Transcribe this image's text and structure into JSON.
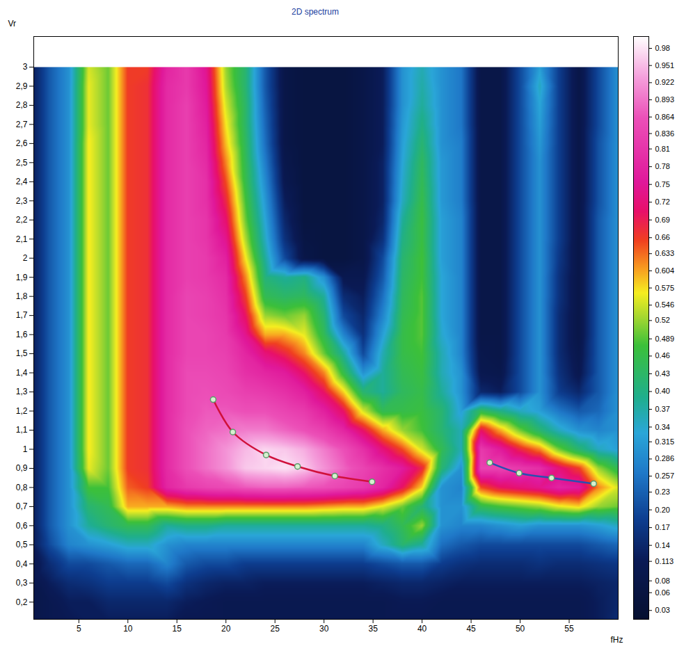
{
  "chart_data": {
    "type": "heatmap",
    "title": "2D spectrum",
    "x_label": "fHz",
    "y_label": "Vr",
    "xlim": [
      0.4,
      60
    ],
    "ylim": [
      0.11,
      3.16
    ],
    "xticks": [
      5,
      10,
      15,
      20,
      25,
      30,
      35,
      40,
      45,
      50,
      55
    ],
    "yticks": [
      {
        "value": 0.2,
        "label": "0,2"
      },
      {
        "value": 0.3,
        "label": "0,3"
      },
      {
        "value": 0.4,
        "label": "0,4"
      },
      {
        "value": 0.5,
        "label": "0,5"
      },
      {
        "value": 0.6,
        "label": "0,6"
      },
      {
        "value": 0.7,
        "label": "0,7"
      },
      {
        "value": 0.8,
        "label": "0,8"
      },
      {
        "value": 0.9,
        "label": "0,9"
      },
      1,
      {
        "value": 1.1,
        "label": "1,1"
      },
      {
        "value": 1.2,
        "label": "1,2"
      },
      {
        "value": 1.3,
        "label": "1,3"
      },
      {
        "value": 1.4,
        "label": "1,4"
      },
      {
        "value": 1.5,
        "label": "1,5"
      },
      {
        "value": 1.6,
        "label": "1,6"
      },
      {
        "value": 1.7,
        "label": "1,7"
      },
      {
        "value": 1.8,
        "label": "1,8"
      },
      {
        "value": 1.9,
        "label": "1,9"
      },
      2,
      {
        "value": 2.1,
        "label": "2,1"
      },
      {
        "value": 2.2,
        "label": "2,2"
      },
      {
        "value": 2.3,
        "label": "2,3"
      },
      {
        "value": 2.4,
        "label": "2,4"
      },
      {
        "value": 2.5,
        "label": "2,5"
      },
      {
        "value": 2.6,
        "label": "2,6"
      },
      {
        "value": 2.7,
        "label": "2,7"
      },
      {
        "value": 2.8,
        "label": "2,8"
      },
      {
        "value": 2.9,
        "label": "2,9"
      },
      3
    ],
    "cells": {
      "x": [
        0,
        2,
        4,
        6,
        8,
        10,
        12,
        14,
        16,
        18,
        20,
        22,
        24,
        26,
        28,
        30,
        32,
        34,
        36,
        38,
        40,
        42,
        44,
        46,
        48,
        50,
        52,
        54,
        56,
        58,
        60
      ],
      "y": [
        3.0,
        2.9,
        2.8,
        2.7,
        2.6,
        2.5,
        2.4,
        2.3,
        2.2,
        2.1,
        2.0,
        1.9,
        1.8,
        1.7,
        1.6,
        1.5,
        1.4,
        1.3,
        1.2,
        1.1,
        1.0,
        0.9,
        0.8,
        0.7,
        0.6,
        0.5,
        0.4,
        0.3,
        0.2,
        0.1
      ],
      "values": [
        [
          0.1,
          0.22,
          0.3,
          0.55,
          0.5,
          0.66,
          0.66,
          0.78,
          0.82,
          0.74,
          0.52,
          0.42,
          0.22,
          0.08,
          0.06,
          0.06,
          0.06,
          0.08,
          0.12,
          0.3,
          0.36,
          0.3,
          0.26,
          0.08,
          0.08,
          0.2,
          0.32,
          0.18,
          0.08,
          0.2,
          0.3
        ],
        [
          0.1,
          0.22,
          0.3,
          0.56,
          0.5,
          0.66,
          0.67,
          0.79,
          0.82,
          0.75,
          0.53,
          0.42,
          0.22,
          0.08,
          0.06,
          0.06,
          0.06,
          0.08,
          0.12,
          0.3,
          0.37,
          0.3,
          0.26,
          0.08,
          0.08,
          0.2,
          0.35,
          0.18,
          0.08,
          0.2,
          0.3
        ],
        [
          0.1,
          0.22,
          0.3,
          0.56,
          0.5,
          0.66,
          0.67,
          0.79,
          0.83,
          0.76,
          0.55,
          0.43,
          0.23,
          0.08,
          0.06,
          0.06,
          0.06,
          0.08,
          0.12,
          0.3,
          0.38,
          0.3,
          0.26,
          0.08,
          0.08,
          0.2,
          0.33,
          0.18,
          0.08,
          0.2,
          0.3
        ],
        [
          0.1,
          0.22,
          0.3,
          0.56,
          0.5,
          0.66,
          0.67,
          0.79,
          0.83,
          0.77,
          0.57,
          0.43,
          0.24,
          0.08,
          0.06,
          0.06,
          0.06,
          0.08,
          0.12,
          0.31,
          0.4,
          0.3,
          0.26,
          0.08,
          0.08,
          0.2,
          0.32,
          0.18,
          0.08,
          0.2,
          0.3
        ],
        [
          0.1,
          0.22,
          0.3,
          0.57,
          0.5,
          0.66,
          0.67,
          0.79,
          0.83,
          0.78,
          0.59,
          0.44,
          0.25,
          0.08,
          0.06,
          0.06,
          0.06,
          0.08,
          0.12,
          0.32,
          0.42,
          0.3,
          0.27,
          0.08,
          0.08,
          0.2,
          0.31,
          0.18,
          0.08,
          0.21,
          0.3
        ],
        [
          0.1,
          0.22,
          0.3,
          0.57,
          0.5,
          0.66,
          0.67,
          0.79,
          0.83,
          0.79,
          0.62,
          0.45,
          0.27,
          0.09,
          0.06,
          0.06,
          0.06,
          0.08,
          0.13,
          0.33,
          0.44,
          0.31,
          0.27,
          0.08,
          0.08,
          0.2,
          0.3,
          0.18,
          0.08,
          0.21,
          0.3
        ],
        [
          0.1,
          0.22,
          0.3,
          0.57,
          0.5,
          0.66,
          0.67,
          0.79,
          0.83,
          0.8,
          0.65,
          0.46,
          0.29,
          0.1,
          0.06,
          0.06,
          0.06,
          0.08,
          0.13,
          0.34,
          0.45,
          0.31,
          0.27,
          0.08,
          0.08,
          0.2,
          0.3,
          0.18,
          0.08,
          0.21,
          0.3
        ],
        [
          0.1,
          0.22,
          0.3,
          0.57,
          0.5,
          0.66,
          0.67,
          0.79,
          0.83,
          0.8,
          0.68,
          0.48,
          0.31,
          0.12,
          0.06,
          0.06,
          0.06,
          0.08,
          0.13,
          0.35,
          0.46,
          0.31,
          0.27,
          0.08,
          0.08,
          0.2,
          0.3,
          0.18,
          0.08,
          0.21,
          0.3
        ],
        [
          0.1,
          0.22,
          0.3,
          0.57,
          0.5,
          0.66,
          0.67,
          0.79,
          0.83,
          0.81,
          0.71,
          0.5,
          0.33,
          0.14,
          0.06,
          0.06,
          0.06,
          0.08,
          0.14,
          0.38,
          0.47,
          0.32,
          0.28,
          0.08,
          0.08,
          0.2,
          0.3,
          0.18,
          0.08,
          0.22,
          0.3
        ],
        [
          0.1,
          0.22,
          0.3,
          0.57,
          0.5,
          0.66,
          0.67,
          0.79,
          0.83,
          0.81,
          0.74,
          0.53,
          0.35,
          0.16,
          0.07,
          0.06,
          0.06,
          0.08,
          0.16,
          0.4,
          0.47,
          0.32,
          0.28,
          0.08,
          0.08,
          0.2,
          0.3,
          0.18,
          0.08,
          0.22,
          0.3
        ],
        [
          0.1,
          0.22,
          0.3,
          0.57,
          0.5,
          0.66,
          0.67,
          0.79,
          0.83,
          0.82,
          0.77,
          0.57,
          0.38,
          0.2,
          0.08,
          0.06,
          0.06,
          0.08,
          0.2,
          0.42,
          0.48,
          0.32,
          0.28,
          0.08,
          0.08,
          0.2,
          0.3,
          0.17,
          0.08,
          0.22,
          0.3
        ],
        [
          0.1,
          0.22,
          0.3,
          0.57,
          0.5,
          0.66,
          0.67,
          0.79,
          0.83,
          0.82,
          0.79,
          0.62,
          0.41,
          0.38,
          0.4,
          0.3,
          0.1,
          0.1,
          0.22,
          0.43,
          0.48,
          0.33,
          0.28,
          0.08,
          0.08,
          0.2,
          0.3,
          0.16,
          0.08,
          0.22,
          0.3
        ],
        [
          0.1,
          0.22,
          0.3,
          0.57,
          0.5,
          0.66,
          0.67,
          0.79,
          0.84,
          0.83,
          0.8,
          0.66,
          0.45,
          0.43,
          0.44,
          0.38,
          0.15,
          0.12,
          0.25,
          0.44,
          0.49,
          0.33,
          0.28,
          0.08,
          0.08,
          0.2,
          0.3,
          0.16,
          0.08,
          0.22,
          0.3
        ],
        [
          0.1,
          0.22,
          0.3,
          0.57,
          0.5,
          0.66,
          0.67,
          0.79,
          0.84,
          0.83,
          0.81,
          0.7,
          0.52,
          0.5,
          0.52,
          0.42,
          0.2,
          0.14,
          0.28,
          0.45,
          0.49,
          0.33,
          0.28,
          0.08,
          0.08,
          0.2,
          0.3,
          0.15,
          0.08,
          0.22,
          0.3
        ],
        [
          0.1,
          0.22,
          0.3,
          0.57,
          0.5,
          0.66,
          0.67,
          0.79,
          0.84,
          0.84,
          0.82,
          0.74,
          0.6,
          0.6,
          0.56,
          0.45,
          0.28,
          0.16,
          0.32,
          0.46,
          0.49,
          0.34,
          0.28,
          0.08,
          0.08,
          0.2,
          0.3,
          0.15,
          0.08,
          0.22,
          0.3
        ],
        [
          0.1,
          0.22,
          0.3,
          0.57,
          0.5,
          0.66,
          0.67,
          0.79,
          0.84,
          0.84,
          0.83,
          0.78,
          0.72,
          0.68,
          0.62,
          0.5,
          0.38,
          0.2,
          0.36,
          0.46,
          0.48,
          0.36,
          0.28,
          0.09,
          0.08,
          0.2,
          0.3,
          0.15,
          0.09,
          0.22,
          0.3
        ],
        [
          0.1,
          0.22,
          0.3,
          0.57,
          0.5,
          0.66,
          0.67,
          0.79,
          0.85,
          0.85,
          0.84,
          0.8,
          0.78,
          0.76,
          0.7,
          0.62,
          0.46,
          0.3,
          0.38,
          0.45,
          0.47,
          0.36,
          0.3,
          0.1,
          0.09,
          0.2,
          0.3,
          0.16,
          0.1,
          0.22,
          0.3
        ],
        [
          0.1,
          0.22,
          0.3,
          0.57,
          0.5,
          0.66,
          0.67,
          0.79,
          0.85,
          0.86,
          0.85,
          0.83,
          0.82,
          0.8,
          0.77,
          0.7,
          0.58,
          0.42,
          0.38,
          0.44,
          0.46,
          0.38,
          0.3,
          0.14,
          0.12,
          0.2,
          0.3,
          0.18,
          0.14,
          0.22,
          0.3
        ],
        [
          0.1,
          0.22,
          0.3,
          0.57,
          0.5,
          0.66,
          0.67,
          0.79,
          0.85,
          0.87,
          0.87,
          0.86,
          0.86,
          0.84,
          0.82,
          0.77,
          0.7,
          0.55,
          0.45,
          0.46,
          0.47,
          0.42,
          0.32,
          0.45,
          0.4,
          0.35,
          0.32,
          0.26,
          0.22,
          0.24,
          0.3
        ],
        [
          0.1,
          0.22,
          0.3,
          0.57,
          0.5,
          0.66,
          0.67,
          0.79,
          0.86,
          0.88,
          0.89,
          0.9,
          0.9,
          0.88,
          0.86,
          0.83,
          0.78,
          0.7,
          0.6,
          0.52,
          0.48,
          0.42,
          0.36,
          0.7,
          0.6,
          0.5,
          0.42,
          0.35,
          0.3,
          0.28,
          0.3
        ],
        [
          0.1,
          0.22,
          0.3,
          0.57,
          0.5,
          0.66,
          0.67,
          0.79,
          0.86,
          0.89,
          0.92,
          0.95,
          0.97,
          0.96,
          0.94,
          0.9,
          0.86,
          0.8,
          0.72,
          0.65,
          0.55,
          0.45,
          0.36,
          0.82,
          0.76,
          0.68,
          0.62,
          0.5,
          0.42,
          0.35,
          0.32
        ],
        [
          0.1,
          0.22,
          0.3,
          0.56,
          0.5,
          0.66,
          0.67,
          0.79,
          0.86,
          0.89,
          0.92,
          0.96,
          0.97,
          0.98,
          0.96,
          0.92,
          0.88,
          0.84,
          0.8,
          0.76,
          0.68,
          0.42,
          0.3,
          0.84,
          0.84,
          0.82,
          0.8,
          0.72,
          0.66,
          0.52,
          0.45
        ],
        [
          0.1,
          0.22,
          0.3,
          0.48,
          0.48,
          0.64,
          0.66,
          0.78,
          0.82,
          0.84,
          0.85,
          0.87,
          0.88,
          0.88,
          0.87,
          0.86,
          0.84,
          0.82,
          0.78,
          0.7,
          0.58,
          0.3,
          0.28,
          0.65,
          0.7,
          0.72,
          0.74,
          0.78,
          0.76,
          0.62,
          0.55
        ],
        [
          0.1,
          0.22,
          0.3,
          0.42,
          0.45,
          0.6,
          0.6,
          0.6,
          0.62,
          0.62,
          0.62,
          0.62,
          0.62,
          0.62,
          0.62,
          0.61,
          0.6,
          0.6,
          0.56,
          0.5,
          0.42,
          0.3,
          0.3,
          0.45,
          0.48,
          0.5,
          0.52,
          0.56,
          0.58,
          0.52,
          0.5
        ],
        [
          0.1,
          0.22,
          0.3,
          0.38,
          0.42,
          0.45,
          0.45,
          0.38,
          0.4,
          0.4,
          0.38,
          0.38,
          0.38,
          0.38,
          0.38,
          0.38,
          0.38,
          0.38,
          0.4,
          0.45,
          0.52,
          0.3,
          0.28,
          0.28,
          0.3,
          0.32,
          0.3,
          0.3,
          0.3,
          0.32,
          0.35
        ],
        [
          0.1,
          0.2,
          0.28,
          0.3,
          0.32,
          0.35,
          0.35,
          0.3,
          0.28,
          0.28,
          0.28,
          0.28,
          0.28,
          0.28,
          0.28,
          0.28,
          0.28,
          0.28,
          0.35,
          0.42,
          0.38,
          0.25,
          0.22,
          0.2,
          0.2,
          0.2,
          0.2,
          0.2,
          0.2,
          0.22,
          0.24
        ],
        [
          0.08,
          0.15,
          0.2,
          0.2,
          0.22,
          0.24,
          0.24,
          0.28,
          0.22,
          0.2,
          0.2,
          0.18,
          0.18,
          0.18,
          0.18,
          0.18,
          0.18,
          0.18,
          0.2,
          0.22,
          0.22,
          0.18,
          0.16,
          0.15,
          0.15,
          0.15,
          0.16,
          0.15,
          0.15,
          0.16,
          0.17
        ],
        [
          0.08,
          0.12,
          0.15,
          0.16,
          0.18,
          0.18,
          0.18,
          0.2,
          0.16,
          0.14,
          0.13,
          0.13,
          0.12,
          0.12,
          0.12,
          0.12,
          0.12,
          0.12,
          0.13,
          0.14,
          0.14,
          0.13,
          0.12,
          0.12,
          0.12,
          0.12,
          0.12,
          0.12,
          0.12,
          0.13,
          0.14
        ],
        [
          0.08,
          0.1,
          0.12,
          0.12,
          0.14,
          0.14,
          0.14,
          0.14,
          0.12,
          0.11,
          0.1,
          0.1,
          0.1,
          0.1,
          0.1,
          0.1,
          0.1,
          0.1,
          0.1,
          0.11,
          0.11,
          0.1,
          0.1,
          0.1,
          0.1,
          0.1,
          0.1,
          0.1,
          0.1,
          0.12,
          0.14
        ],
        [
          0.08,
          0.1,
          0.11,
          0.12,
          0.12,
          0.12,
          0.12,
          0.12,
          0.1,
          0.1,
          0.1,
          0.1,
          0.1,
          0.1,
          0.1,
          0.1,
          0.1,
          0.1,
          0.1,
          0.1,
          0.1,
          0.1,
          0.1,
          0.1,
          0.1,
          0.1,
          0.1,
          0.1,
          0.1,
          0.12,
          0.15
        ]
      ]
    },
    "colorbar": {
      "range": [
        0.015,
        1
      ],
      "ticks": [
        0.03,
        0.06,
        0.08,
        0.113,
        0.14,
        0.17,
        {
          "value": 0.2,
          "label": "0.20"
        },
        0.23,
        0.257,
        0.286,
        0.315,
        0.34,
        0.37,
        {
          "value": 0.4,
          "label": "0.40"
        },
        0.43,
        0.46,
        0.489,
        0.52,
        0.546,
        0.575,
        0.604,
        0.633,
        0.66,
        0.69,
        0.72,
        0.75,
        0.78,
        0.81,
        0.836,
        0.864,
        0.893,
        0.922,
        0.951,
        0.98
      ]
    },
    "series": [
      {
        "color": "#d0103a",
        "marker": "circle",
        "line_style": "solid",
        "x": [
          18.7,
          20.7,
          24.1,
          27.3,
          31.1,
          34.9
        ],
        "values": [
          1.26,
          1.09,
          0.97,
          0.91,
          0.86,
          0.83
        ]
      },
      {
        "color": "#2a4fb0",
        "marker": "circle",
        "line_style": "solid",
        "x": [
          46.9,
          49.9,
          53.2,
          57.5
        ],
        "values": [
          0.93,
          0.875,
          0.85,
          0.82
        ]
      }
    ]
  }
}
